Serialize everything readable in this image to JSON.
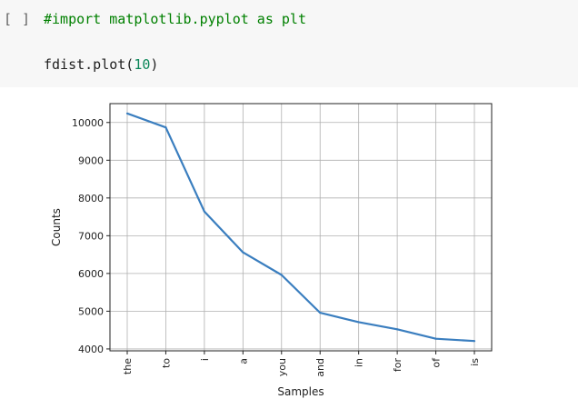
{
  "cell": {
    "run_indicator": "[ ]",
    "code_comment": "#import matplotlib.pyplot as plt",
    "code_call_prefix": "fdist.plot(",
    "code_call_arg": "10",
    "code_call_suffix": ")"
  },
  "chart_data": {
    "type": "line",
    "categories": [
      "the",
      "to",
      "i",
      "a",
      "you",
      "and",
      "in",
      "for",
      "of",
      "is"
    ],
    "values": [
      10240,
      9870,
      7640,
      6560,
      5960,
      4960,
      4710,
      4520,
      4270,
      4210
    ],
    "xlabel": "Samples",
    "ylabel": "Counts",
    "yticks": [
      4000,
      5000,
      6000,
      7000,
      8000,
      9000,
      10000
    ],
    "ylim": [
      3950,
      10500
    ],
    "grid": true,
    "line_color": "#3a7ebf",
    "grid_color": "#b0b0b0"
  }
}
